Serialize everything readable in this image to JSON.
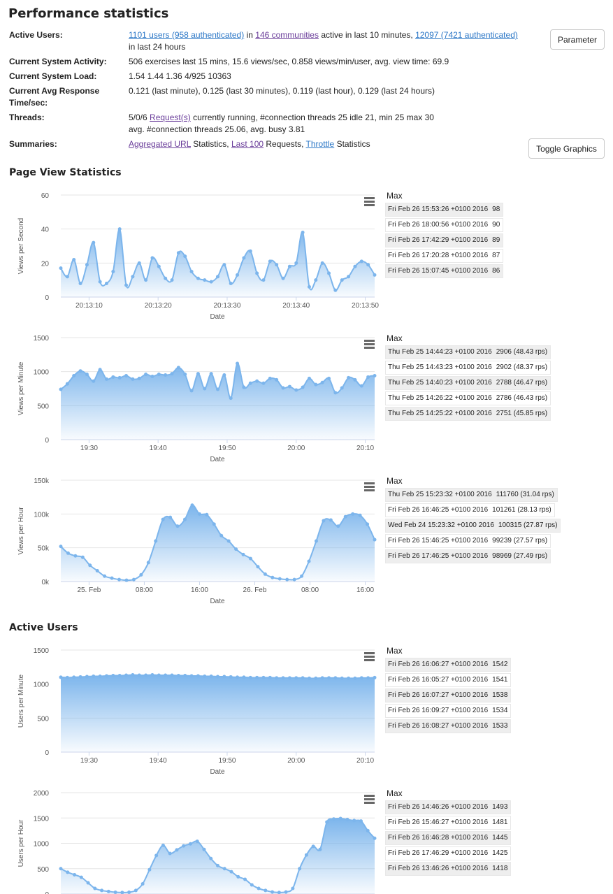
{
  "page": {
    "title": "Performance statistics"
  },
  "info": {
    "active_users": {
      "label": "Active Users:",
      "users_link": "1101 users (958 authenticated)",
      "in_text": "in",
      "communities_link": "146 communities",
      "active_text": "active in last 10 minutes,",
      "day_link": "12097 (7421 authenticated)",
      "day_text": "in last 24 hours"
    },
    "system_activity": {
      "label": "Current System Activity:",
      "value": "506 exercises last 15 mins, 15.6 views/sec, 0.858 views/min/user, avg. view time: 69.9"
    },
    "system_load": {
      "label": "Current System Load:",
      "value": "1.54 1.44 1.36 4/925 10363"
    },
    "avg_response": {
      "label": "Current Avg Response Time/sec:",
      "value": "0.121 (last minute), 0.125 (last 30 minutes), 0.119 (last hour), 0.129 (last 24 hours)"
    },
    "threads": {
      "label": "Threads:",
      "prefix": "5/0/6",
      "requests_link": "Request(s)",
      "suffix": "currently running, #connection threads 25 idle 21, min 25 max 30",
      "line2": "avg. #connection threads 25.06, avg. busy 3.81"
    },
    "summaries": {
      "label": "Summaries:",
      "aggregated_link": "Aggregated URL",
      "statistics1": "Statistics,",
      "last100_link": "Last 100",
      "requests_text": "Requests,",
      "throttle_link": "Throttle",
      "statistics2": "Statistics"
    }
  },
  "buttons": {
    "parameter": "Parameter",
    "toggle_graphics": "Toggle Graphics"
  },
  "sections": {
    "page_view": "Page View Statistics",
    "active_users": "Active Users"
  },
  "max_label": "Max",
  "colors": {
    "line": "#7cb5ec",
    "link": "#2a76c6",
    "link_visited": "#6a3d9a"
  },
  "chart_data": [
    {
      "id": "views-per-second",
      "type": "area",
      "ylabel": "Views per Second",
      "xlabel": "Date",
      "ylim": [
        0,
        60
      ],
      "yticks": [
        "0",
        "20",
        "40",
        "60"
      ],
      "xticks": [
        "20:13:10",
        "20:13:20",
        "20:13:30",
        "20:13:40",
        "20:13:50"
      ],
      "values": [
        17,
        12,
        22,
        8,
        19,
        32,
        9,
        8,
        15,
        40,
        7,
        12,
        20,
        10,
        23,
        18,
        11,
        10,
        26,
        24,
        15,
        11,
        10,
        9,
        12,
        19,
        8,
        13,
        23,
        27,
        14,
        10,
        21,
        19,
        11,
        18,
        20,
        38,
        6,
        10,
        20,
        14,
        4,
        10,
        12,
        18,
        21,
        19,
        13
      ],
      "max": [
        {
          "time": "Fri Feb 26 15:53:26 +0100 2016",
          "value": "98"
        },
        {
          "time": "Fri Feb 26 18:00:56 +0100 2016",
          "value": "90"
        },
        {
          "time": "Fri Feb 26 17:42:29 +0100 2016",
          "value": "89"
        },
        {
          "time": "Fri Feb 26 17:20:28 +0100 2016",
          "value": "87"
        },
        {
          "time": "Fri Feb 26 15:07:45 +0100 2016",
          "value": "86"
        }
      ]
    },
    {
      "id": "views-per-minute",
      "type": "area",
      "ylabel": "Views per Minute",
      "xlabel": "Date",
      "ylim": [
        0,
        1500
      ],
      "yticks": [
        "0",
        "500",
        "1000",
        "1500"
      ],
      "xticks": [
        "19:30",
        "19:40",
        "19:50",
        "20:00",
        "20:10"
      ],
      "values": [
        740,
        820,
        940,
        1010,
        960,
        860,
        1030,
        890,
        920,
        910,
        940,
        890,
        900,
        960,
        930,
        960,
        950,
        970,
        1060,
        960,
        720,
        970,
        750,
        970,
        740,
        950,
        610,
        1120,
        770,
        830,
        860,
        830,
        900,
        880,
        760,
        780,
        730,
        770,
        900,
        810,
        840,
        900,
        690,
        760,
        910,
        880,
        790,
        920,
        940
      ],
      "max": [
        {
          "time": "Thu Feb 25 14:44:23 +0100 2016",
          "value": "2906 (48.43 rps)"
        },
        {
          "time": "Thu Feb 25 14:43:23 +0100 2016",
          "value": "2902 (48.37 rps)"
        },
        {
          "time": "Thu Feb 25 14:40:23 +0100 2016",
          "value": "2788 (46.47 rps)"
        },
        {
          "time": "Thu Feb 25 14:26:22 +0100 2016",
          "value": "2786 (46.43 rps)"
        },
        {
          "time": "Thu Feb 25 14:25:22 +0100 2016",
          "value": "2751 (45.85 rps)"
        }
      ]
    },
    {
      "id": "views-per-hour",
      "type": "area",
      "ylabel": "Views per Hour",
      "xlabel": "Date",
      "ylim": [
        0,
        150000
      ],
      "yticks": [
        "0k",
        "50k",
        "100k",
        "150k"
      ],
      "xticks": [
        "25. Feb",
        "08:00",
        "16:00",
        "26. Feb",
        "08:00",
        "16:00"
      ],
      "values": [
        52000,
        42000,
        38000,
        36000,
        24000,
        16000,
        8000,
        5000,
        3000,
        2000,
        3000,
        10000,
        28000,
        60000,
        92000,
        95000,
        82000,
        92000,
        113000,
        100000,
        99000,
        85000,
        68000,
        60000,
        48000,
        40000,
        34000,
        22000,
        11000,
        6000,
        4000,
        3000,
        3000,
        8000,
        30000,
        60000,
        90000,
        91000,
        82000,
        96000,
        100000,
        98000,
        85000,
        62000
      ],
      "max": [
        {
          "time": "Thu Feb 25 15:23:32 +0100 2016",
          "value": "111760 (31.04 rps)"
        },
        {
          "time": "Fri Feb 26 16:46:25 +0100 2016",
          "value": "101261 (28.13 rps)"
        },
        {
          "time": "Wed Feb 24 15:23:32 +0100 2016",
          "value": "100315 (27.87 rps)"
        },
        {
          "time": "Fri Feb 26 15:46:25 +0100 2016",
          "value": "99239 (27.57 rps)"
        },
        {
          "time": "Fri Feb 26 17:46:25 +0100 2016",
          "value": "98969 (27.49 rps)"
        }
      ]
    },
    {
      "id": "users-per-minute",
      "type": "area",
      "ylabel": "Users per Minute",
      "xlabel": "Date",
      "ylim": [
        0,
        1500
      ],
      "yticks": [
        "0",
        "500",
        "1000",
        "1500"
      ],
      "xticks": [
        "19:30",
        "19:40",
        "19:50",
        "20:00",
        "20:10"
      ],
      "values": [
        1100,
        1095,
        1100,
        1105,
        1110,
        1115,
        1115,
        1120,
        1125,
        1125,
        1130,
        1135,
        1130,
        1130,
        1135,
        1130,
        1130,
        1130,
        1125,
        1125,
        1120,
        1120,
        1115,
        1115,
        1110,
        1110,
        1105,
        1100,
        1100,
        1095,
        1095,
        1095,
        1095,
        1090,
        1090,
        1090,
        1090,
        1090,
        1085,
        1085,
        1090,
        1090,
        1090,
        1085,
        1085,
        1085,
        1090,
        1090,
        1095
      ],
      "max": [
        {
          "time": "Fri Feb 26 16:06:27 +0100 2016",
          "value": "1542"
        },
        {
          "time": "Fri Feb 26 16:05:27 +0100 2016",
          "value": "1541"
        },
        {
          "time": "Fri Feb 26 16:07:27 +0100 2016",
          "value": "1538"
        },
        {
          "time": "Fri Feb 26 16:09:27 +0100 2016",
          "value": "1534"
        },
        {
          "time": "Fri Feb 26 16:08:27 +0100 2016",
          "value": "1533"
        }
      ]
    },
    {
      "id": "users-per-hour",
      "type": "area",
      "ylabel": "Users per Hour",
      "xlabel": "",
      "ylim": [
        0,
        2000
      ],
      "yticks": [
        "0",
        "500",
        "1000",
        "1500",
        "2000"
      ],
      "xticks": [],
      "values": [
        500,
        430,
        380,
        330,
        220,
        110,
        70,
        50,
        35,
        30,
        35,
        70,
        200,
        480,
        760,
        960,
        800,
        870,
        950,
        990,
        1040,
        880,
        700,
        560,
        500,
        440,
        340,
        290,
        180,
        110,
        70,
        40,
        30,
        40,
        110,
        500,
        770,
        940,
        880,
        1420,
        1480,
        1490,
        1470,
        1450,
        1440,
        1250,
        1100
      ],
      "max": [
        {
          "time": "Fri Feb 26 14:46:26 +0100 2016",
          "value": "1493"
        },
        {
          "time": "Fri Feb 26 15:46:27 +0100 2016",
          "value": "1481"
        },
        {
          "time": "Fri Feb 26 16:46:28 +0100 2016",
          "value": "1445"
        },
        {
          "time": "Fri Feb 26 17:46:29 +0100 2016",
          "value": "1425"
        },
        {
          "time": "Fri Feb 26 13:46:26 +0100 2016",
          "value": "1418"
        }
      ]
    }
  ]
}
